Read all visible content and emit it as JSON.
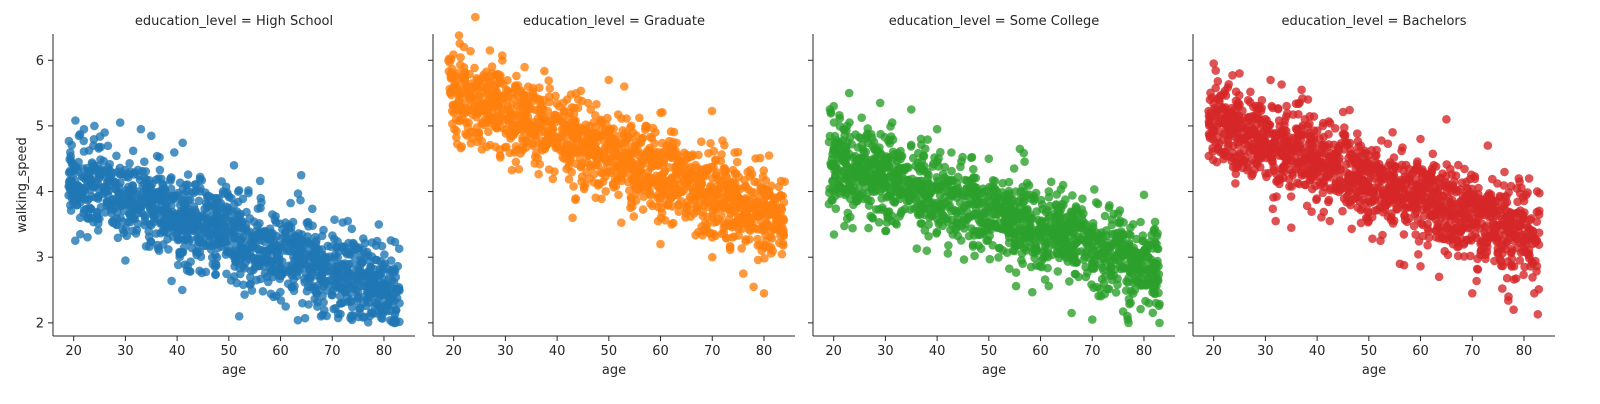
{
  "chart_data": {
    "type": "scatter",
    "layout": "facet-grid-1x4",
    "facet_variable": "education_level",
    "xlabel": "age",
    "ylabel": "walking_speed",
    "xlim": [
      16,
      86
    ],
    "ylim": [
      1.8,
      6.4
    ],
    "xticks": [
      20,
      30,
      40,
      50,
      60,
      70,
      80
    ],
    "yticks": [
      2,
      3,
      4,
      5,
      6
    ],
    "grid": false,
    "legend": "none",
    "marker_alpha": 0.8,
    "facets": [
      {
        "title": "education_level = High School",
        "color": "#1f77b4",
        "trend": {
          "intercept": 4.72,
          "slope": -0.0275
        },
        "spread": 0.33,
        "x_range": [
          19,
          83
        ],
        "y_floor": 2.0,
        "points": [
          [
            20,
            4.4
          ],
          [
            22,
            4.95
          ],
          [
            24,
            5.0
          ],
          [
            26,
            4.9
          ],
          [
            29,
            5.05
          ],
          [
            21,
            4.85
          ],
          [
            33,
            4.95
          ],
          [
            35,
            4.85
          ],
          [
            64,
            4.25
          ],
          [
            51,
            4.4
          ],
          [
            52,
            2.1
          ],
          [
            41,
            2.5
          ],
          [
            73,
            3.55
          ],
          [
            79,
            3.5
          ],
          [
            83,
            2.3
          ],
          [
            82,
            2.0
          ],
          [
            61,
            2.25
          ],
          [
            30,
            2.95
          ]
        ]
      },
      {
        "title": "education_level = Graduate",
        "color": "#ff7f0e",
        "trend": {
          "intercept": 6.1,
          "slope": -0.0305
        },
        "spread": 0.33,
        "x_range": [
          19,
          84
        ],
        "y_floor": 2.4,
        "points": [
          [
            22,
            6.2
          ],
          [
            27,
            6.15
          ],
          [
            20,
            5.2
          ],
          [
            21,
            5.4
          ],
          [
            50,
            5.7
          ],
          [
            53,
            5.6
          ],
          [
            60,
            5.2
          ],
          [
            75,
            4.6
          ],
          [
            81,
            4.55
          ],
          [
            84,
            4.15
          ],
          [
            80,
            2.45
          ],
          [
            78,
            2.55
          ],
          [
            43,
            3.6
          ],
          [
            60,
            3.2
          ],
          [
            70,
            3.0
          ],
          [
            76,
            2.75
          ]
        ]
      },
      {
        "title": "education_level = Some College",
        "color": "#2ca02c",
        "trend": {
          "intercept": 5.0,
          "slope": -0.0262
        },
        "spread": 0.33,
        "x_range": [
          19,
          83
        ],
        "y_floor": 2.0,
        "points": [
          [
            23,
            5.5
          ],
          [
            20,
            5.3
          ],
          [
            35,
            5.25
          ],
          [
            29,
            5.35
          ],
          [
            40,
            4.95
          ],
          [
            50,
            4.5
          ],
          [
            56,
            4.65
          ],
          [
            80,
            3.95
          ],
          [
            20,
            4.0
          ],
          [
            30,
            3.4
          ],
          [
            38,
            3.1
          ],
          [
            70,
            2.05
          ],
          [
            77,
            2.0
          ],
          [
            83,
            2.0
          ],
          [
            66,
            2.15
          ]
        ]
      },
      {
        "title": "education_level = Bachelors",
        "color": "#d62728",
        "trend": {
          "intercept": 5.6,
          "slope": -0.0285
        },
        "spread": 0.33,
        "x_range": [
          19,
          83
        ],
        "y_floor": 2.1,
        "points": [
          [
            20,
            5.95
          ],
          [
            25,
            5.8
          ],
          [
            31,
            5.7
          ],
          [
            37,
            5.55
          ],
          [
            65,
            5.1
          ],
          [
            60,
            4.8
          ],
          [
            73,
            4.7
          ],
          [
            79,
            4.2
          ],
          [
            81,
            4.2
          ],
          [
            35,
            3.45
          ],
          [
            32,
            3.55
          ],
          [
            56,
            2.9
          ],
          [
            70,
            2.45
          ],
          [
            78,
            2.2
          ],
          [
            82,
            2.45
          ],
          [
            77,
            2.4
          ]
        ]
      }
    ]
  }
}
